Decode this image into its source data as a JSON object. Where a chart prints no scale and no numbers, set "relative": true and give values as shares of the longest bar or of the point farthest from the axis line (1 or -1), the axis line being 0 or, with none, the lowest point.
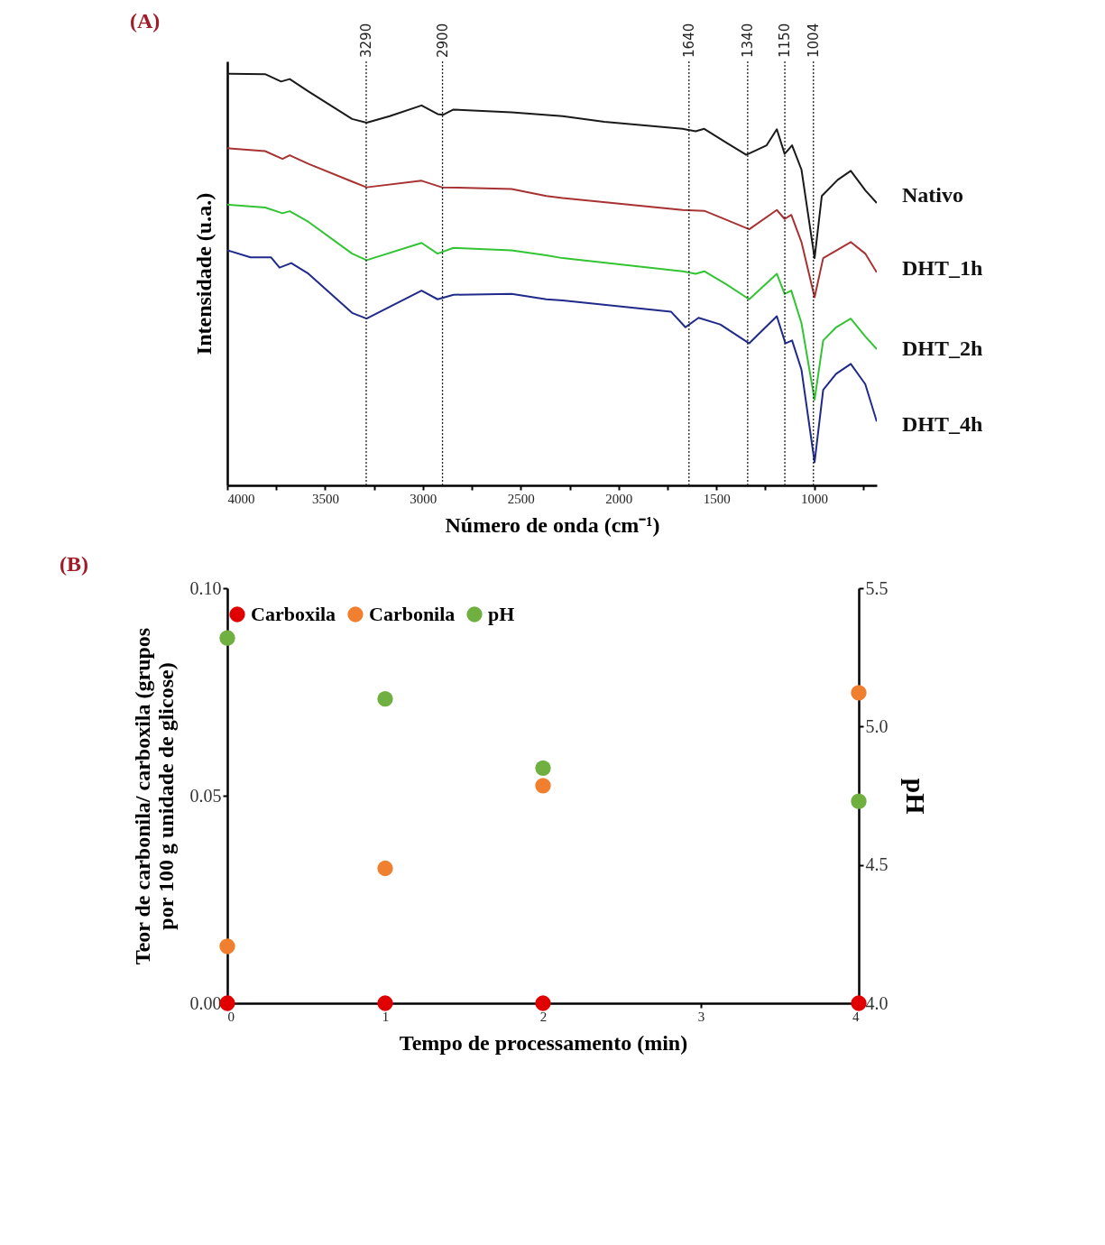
{
  "chart_data": [
    {
      "type": "line",
      "title": "(A)",
      "xlabel": "Número de onda (cm⁻¹)",
      "ylabel": "Intensidade (u.a.)",
      "relative": true,
      "tick_labels": "x",
      "grid": false,
      "xlim": [
        4000,
        680
      ],
      "xticks": [
        4000,
        {
          "value": 3750,
          "label": null
        },
        3500,
        {
          "value": 3250,
          "label": null
        },
        3000,
        {
          "value": 2750,
          "label": null
        },
        2500,
        {
          "value": 2250,
          "label": null
        },
        2000,
        {
          "value": 1750,
          "label": null
        },
        1500,
        {
          "value": 1250,
          "label": null
        },
        1000,
        {
          "value": 750,
          "label": null
        }
      ],
      "ref_lines": [
        {
          "axis": "x",
          "value": 3290,
          "label": "3290",
          "line_style": "dotted"
        },
        {
          "axis": "x",
          "value": 2900,
          "label": "2900",
          "line_style": "dotted"
        },
        {
          "axis": "x",
          "value": 1640,
          "label": "1640",
          "line_style": "dotted"
        },
        {
          "axis": "x",
          "value": 1340,
          "label": "1340",
          "line_style": "dotted"
        },
        {
          "axis": "x",
          "value": 1150,
          "label": "1150",
          "line_style": "dotted"
        },
        {
          "axis": "x",
          "value": 1004,
          "label": "1004",
          "line_style": "dotted"
        }
      ],
      "series": [
        {
          "name": "Nativo",
          "color": "#1a1a1a",
          "x": [
            4000,
            3807,
            3725,
            3681,
            3585,
            3362,
            3288,
            3170,
            3007,
            2925,
            2898,
            2844,
            2547,
            2286,
            2073,
            1673,
            1606,
            1562,
            1451,
            1347,
            1243,
            1191,
            1151,
            1113,
            1065,
            998,
            961,
            880,
            813,
            739,
            680
          ],
          "values": [
            1.0,
            0.999,
            0.981,
            0.987,
            0.957,
            0.89,
            0.881,
            0.897,
            0.923,
            0.902,
            0.9,
            0.913,
            0.906,
            0.897,
            0.883,
            0.866,
            0.86,
            0.866,
            0.833,
            0.803,
            0.826,
            0.865,
            0.805,
            0.826,
            0.767,
            0.552,
            0.703,
            0.742,
            0.764,
            0.717,
            0.686
          ]
        },
        {
          "name": "DHT_1h",
          "color": "#a83232",
          "x": [
            4000,
            3807,
            3718,
            3681,
            3585,
            3362,
            3288,
            3007,
            2903,
            2547,
            2369,
            2286,
            1673,
            1562,
            1480,
            1332,
            1191,
            1151,
            1117,
            1065,
            998,
            954,
            813,
            739,
            680
          ],
          "values": [
            0.819,
            0.812,
            0.793,
            0.802,
            0.781,
            0.738,
            0.724,
            0.74,
            0.724,
            0.72,
            0.703,
            0.698,
            0.669,
            0.667,
            0.651,
            0.622,
            0.669,
            0.647,
            0.657,
            0.591,
            0.457,
            0.552,
            0.591,
            0.563,
            0.517
          ]
        },
        {
          "name": "DHT_2h",
          "color": "#33c433",
          "x": [
            4000,
            3807,
            3718,
            3681,
            3585,
            3362,
            3288,
            3007,
            2925,
            2844,
            2547,
            2369,
            2286,
            1673,
            1606,
            1562,
            1451,
            1332,
            1191,
            1151,
            1117,
            1065,
            998,
            954,
            888,
            813,
            739,
            680
          ],
          "values": [
            0.682,
            0.675,
            0.661,
            0.666,
            0.64,
            0.563,
            0.547,
            0.589,
            0.563,
            0.577,
            0.571,
            0.559,
            0.552,
            0.52,
            0.514,
            0.52,
            0.489,
            0.452,
            0.514,
            0.465,
            0.473,
            0.394,
            0.208,
            0.352,
            0.384,
            0.405,
            0.362,
            0.331
          ]
        },
        {
          "name": "DHT_4h",
          "color": "#1f2a8a",
          "x": [
            4000,
            3881,
            3777,
            3733,
            3673,
            3585,
            3362,
            3288,
            3007,
            2925,
            2844,
            2547,
            2369,
            2286,
            1732,
            1658,
            1591,
            1480,
            1332,
            1191,
            1147,
            1113,
            1065,
            998,
            954,
            888,
            813,
            739,
            680
          ],
          "values": [
            0.571,
            0.554,
            0.554,
            0.529,
            0.54,
            0.514,
            0.419,
            0.405,
            0.473,
            0.452,
            0.463,
            0.465,
            0.452,
            0.449,
            0.422,
            0.384,
            0.407,
            0.391,
            0.345,
            0.411,
            0.345,
            0.352,
            0.281,
            0.056,
            0.232,
            0.271,
            0.295,
            0.246,
            0.155
          ]
        }
      ]
    },
    {
      "type": "scatter",
      "title": "(B)",
      "xlabel": "Tempo de processamento (min)",
      "ylabel": "Teor de carbonila/ carboxila (grupos por 100 g unidade de glicose)",
      "y2label": "pH",
      "grid": false,
      "legend": "top",
      "marker": "circle",
      "x": [
        0,
        1,
        2,
        4
      ],
      "xlim": [
        0,
        4
      ],
      "xticks": [
        0,
        1,
        2,
        3,
        4
      ],
      "ylim": [
        0,
        0.1
      ],
      "yticks": [
        {
          "value": 0,
          "label": "0.00"
        },
        {
          "value": 0.05,
          "label": "0.05"
        },
        {
          "value": 0.1,
          "label": "0.10"
        }
      ],
      "y2lim": [
        4,
        5.5
      ],
      "y2ticks": [
        {
          "value": 4,
          "label": "4.0"
        },
        {
          "value": 4.5,
          "label": "4.5"
        },
        {
          "value": 5,
          "label": "5.0"
        },
        {
          "value": 5.5,
          "label": "5.5"
        }
      ],
      "series": [
        {
          "name": "Carboxila",
          "color": "#e00000",
          "values": [
            0,
            0,
            0,
            0
          ]
        },
        {
          "name": "Carbonila",
          "color": "#f08030",
          "values": [
            0.0137,
            0.0325,
            0.0524,
            0.0748
          ]
        },
        {
          "name": "pH",
          "color": "#70b040",
          "axis": "y2",
          "values": [
            5.32,
            5.1,
            4.85,
            4.73
          ]
        }
      ]
    }
  ]
}
